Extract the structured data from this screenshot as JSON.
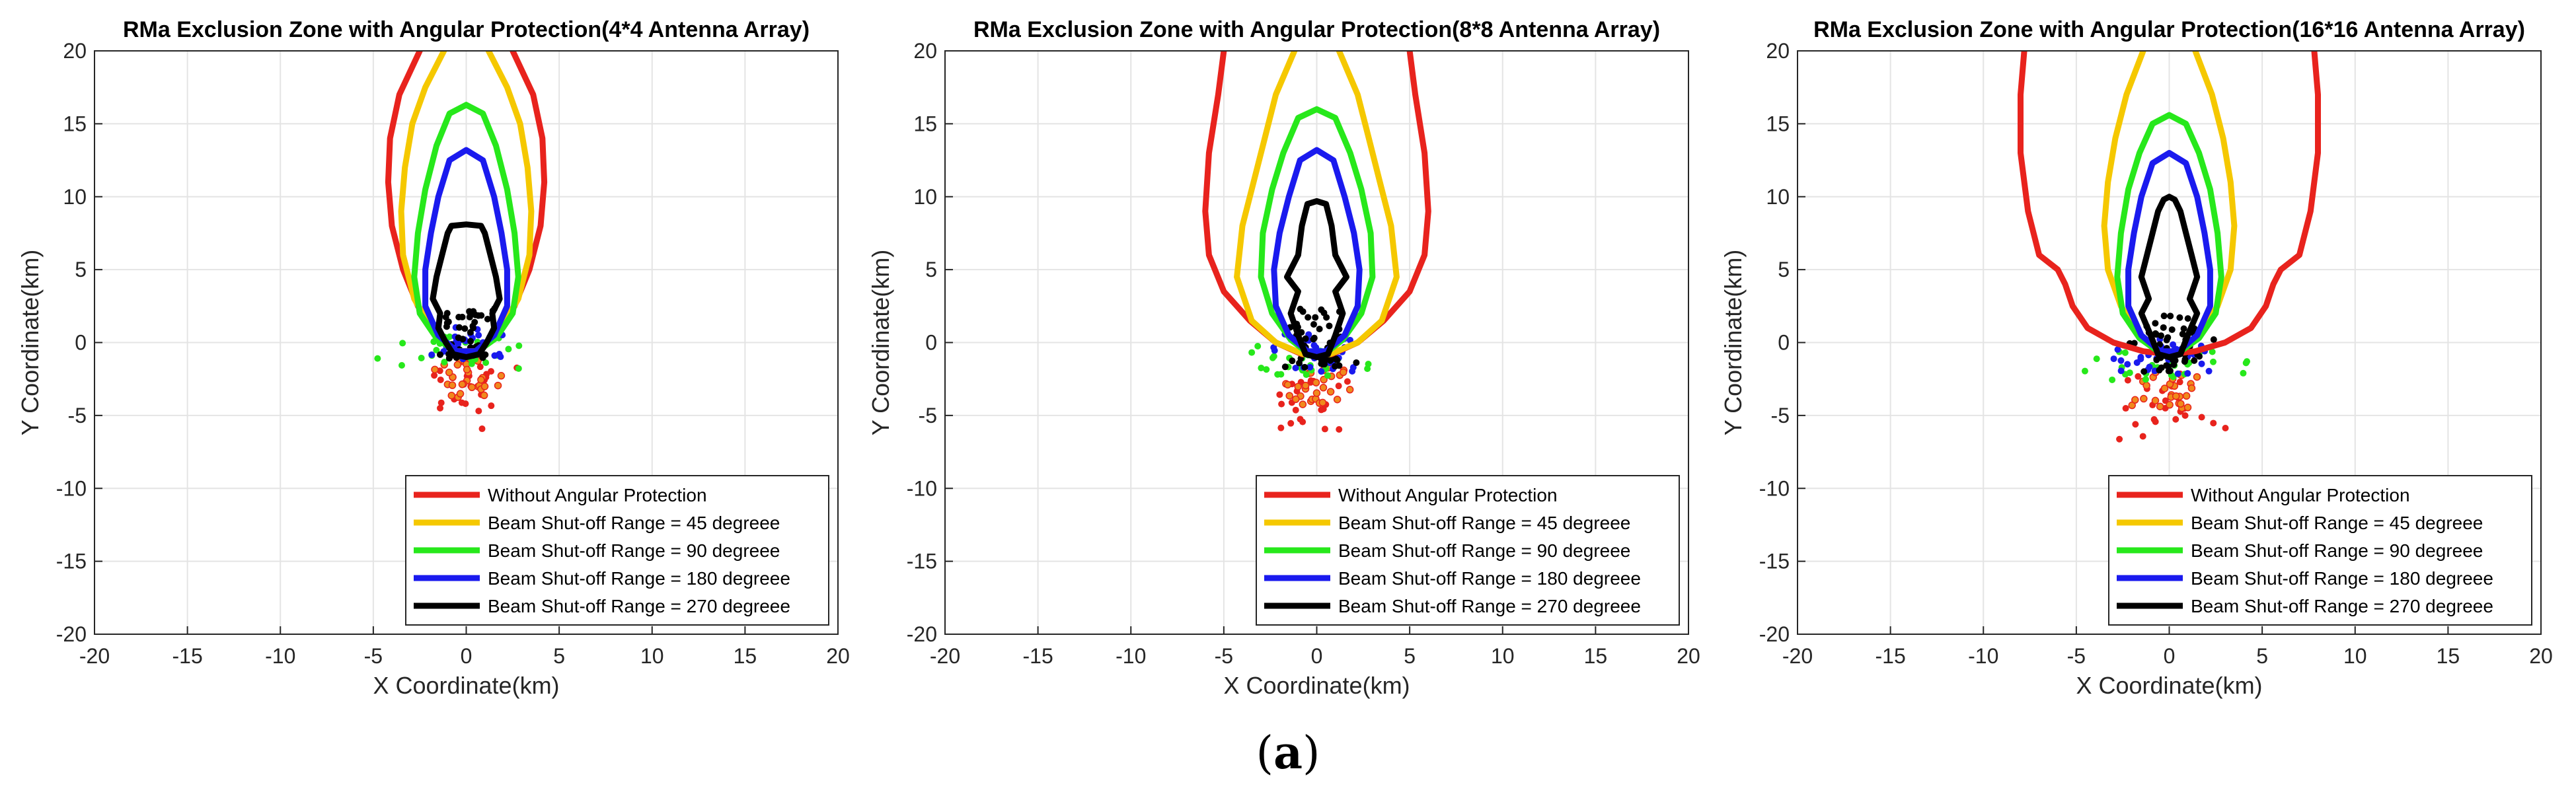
{
  "figure_label": {
    "open": "(",
    "letter": "a",
    "close": ")"
  },
  "colors": {
    "red": "#e8231d",
    "yellow": "#f5c800",
    "green": "#27e81b",
    "blue": "#1a1aee",
    "black": "#000000",
    "grid": "#e4e4e4",
    "orange_marker": "#f08a1c"
  },
  "chart_data": [
    {
      "type": "line",
      "title": "RMa Exclusion Zone with Angular Protection(4*4 Antenna Array)",
      "xlabel": "X Coordinate(km)",
      "ylabel": "Y Coordinate(km)",
      "xlim": [
        -20,
        20
      ],
      "ylim": [
        -20,
        20
      ],
      "xticks": [
        -20,
        -15,
        -10,
        -5,
        0,
        5,
        10,
        15,
        20
      ],
      "yticks": [
        -20,
        -15,
        -10,
        -5,
        0,
        5,
        10,
        15,
        20
      ],
      "grid": true,
      "legend_loc": "bottom-right",
      "series": [
        {
          "name": "Without Angular Protection",
          "color": "red",
          "x": [
            -2.5,
            -3.6,
            -4.1,
            -4.2,
            -4.0,
            -3.4,
            -2.6,
            -1.6,
            -0.6,
            0.6,
            1.6,
            2.6,
            3.4,
            4.0,
            4.2,
            4.1,
            3.6,
            2.5
          ],
          "y": [
            20,
            17,
            14,
            11,
            8,
            5,
            2.5,
            0.5,
            -0.6,
            -0.6,
            0.5,
            2.5,
            5,
            8,
            11,
            14,
            17,
            20
          ]
        },
        {
          "name": "Beam Shut-off Range = 45 degreee",
          "color": "yellow",
          "x": [
            -1.2,
            -2.2,
            -2.9,
            -3.3,
            -3.5,
            -3.4,
            -2.8,
            -1.8,
            -0.6,
            0.6,
            1.8,
            2.8,
            3.4,
            3.5,
            3.3,
            2.9,
            2.2,
            1.2
          ],
          "y": [
            20,
            17.5,
            15,
            12,
            9,
            6,
            3,
            0.8,
            -0.6,
            -0.6,
            0.8,
            3,
            6,
            9,
            12,
            15,
            17.5,
            20
          ]
        },
        {
          "name": "Beam Shut-off Range = 90 degreee",
          "color": "green",
          "x": [
            0,
            -0.9,
            -1.6,
            -2.2,
            -2.6,
            -2.8,
            -2.5,
            -1.6,
            -0.5,
            0.5,
            1.6,
            2.5,
            2.8,
            2.6,
            2.2,
            1.6,
            0.9,
            0
          ],
          "y": [
            16.3,
            15.7,
            13.5,
            10.5,
            7.5,
            4.5,
            2,
            0.3,
            -0.7,
            -0.7,
            0.3,
            2,
            4.5,
            7.5,
            10.5,
            13.5,
            15.7,
            16.3
          ]
        },
        {
          "name": "Beam Shut-off Range = 180 degreee",
          "color": "blue",
          "x": [
            0,
            -0.9,
            -1.5,
            -1.9,
            -2.2,
            -2.2,
            -1.5,
            -0.5,
            0.5,
            1.5,
            2.2,
            2.2,
            1.9,
            1.5,
            0.9,
            0
          ],
          "y": [
            13.2,
            12.5,
            10,
            7.5,
            5,
            2.5,
            0.5,
            -0.6,
            -0.6,
            0.5,
            2.5,
            5,
            7.5,
            10,
            12.5,
            13.2
          ]
        },
        {
          "name": "Beam Shut-off Range = 270 degreee",
          "color": "black",
          "x": [
            -0.8,
            -1,
            -1.3,
            -1.6,
            -1.8,
            -1.4,
            -1.5,
            -1.1,
            -0.7,
            0,
            0.7,
            1.1,
            1.5,
            1.4,
            1.8,
            1.6,
            1.3,
            1,
            0.8,
            0,
            -0.8
          ],
          "y": [
            8,
            7.5,
            6,
            4.5,
            3,
            2,
            1,
            0,
            -0.8,
            -1,
            -0.8,
            0,
            1,
            2,
            3,
            4.5,
            6,
            7.5,
            8,
            8.1,
            8
          ]
        }
      ],
      "scatter_spread": [
        6.5,
        3.0,
        2.2
      ],
      "scatter_center": [
        0,
        0
      ]
    },
    {
      "type": "line",
      "title": "RMa Exclusion Zone with Angular Protection(8*8 Antenna Array)",
      "xlabel": "X Coordinate(km)",
      "ylabel": "Y Coordinate(km)",
      "xlim": [
        -20,
        20
      ],
      "ylim": [
        -20,
        20
      ],
      "xticks": [
        -20,
        -15,
        -10,
        -5,
        0,
        5,
        10,
        15,
        20
      ],
      "yticks": [
        -20,
        -15,
        -10,
        -5,
        0,
        5,
        10,
        15,
        20
      ],
      "grid": true,
      "legend_loc": "bottom-right",
      "series": [
        {
          "name": "Without Angular Protection",
          "color": "red",
          "x": [
            -5,
            -5.3,
            -5.8,
            -6.0,
            -5.8,
            -5.0,
            -3.6,
            -2.2,
            -0.8,
            0.8,
            2.2,
            3.6,
            5.0,
            5.8,
            6.0,
            5.8,
            5.3,
            5
          ],
          "y": [
            20,
            17,
            13,
            9,
            6,
            3.5,
            1.5,
            0,
            -0.8,
            -0.8,
            0,
            1.5,
            3.5,
            6,
            9,
            13,
            17,
            20
          ]
        },
        {
          "name": "Beam Shut-off Range = 45 degreee",
          "color": "yellow",
          "x": [
            -1.2,
            -2.2,
            -2.8,
            -3.4,
            -4.0,
            -4.3,
            -3.5,
            -2.2,
            -0.7,
            0.7,
            2.2,
            3.5,
            4.3,
            4.0,
            3.4,
            2.8,
            2.2,
            1.2
          ],
          "y": [
            20,
            17,
            14,
            11,
            8,
            4.5,
            1.5,
            0,
            -0.8,
            -0.8,
            0,
            1.5,
            4.5,
            8,
            11,
            14,
            17,
            20
          ]
        },
        {
          "name": "Beam Shut-off Range = 90 degreee",
          "color": "green",
          "x": [
            0,
            -1.0,
            -1.8,
            -2.4,
            -2.9,
            -3.0,
            -2.4,
            -1.4,
            -0.5,
            0.5,
            1.4,
            2.4,
            3.0,
            2.9,
            2.4,
            1.8,
            1.0,
            0
          ],
          "y": [
            16,
            15.4,
            13,
            10.5,
            7.5,
            4.5,
            2,
            0.2,
            -0.7,
            -0.7,
            0.2,
            2,
            4.5,
            7.5,
            10.5,
            13,
            15.4,
            16
          ]
        },
        {
          "name": "Beam Shut-off Range = 180 degreee",
          "color": "blue",
          "x": [
            0,
            -0.9,
            -1.5,
            -2.0,
            -2.3,
            -2.2,
            -1.5,
            -0.5,
            0.5,
            1.5,
            2.2,
            2.3,
            2.0,
            1.5,
            0.9,
            0
          ],
          "y": [
            13.2,
            12.5,
            10,
            7.5,
            5,
            2.5,
            0.5,
            -0.6,
            -0.6,
            0.5,
            2.5,
            5,
            7.5,
            10,
            12.5,
            13.2
          ]
        },
        {
          "name": "Beam Shut-off Range = 270 degreee",
          "color": "black",
          "x": [
            -0.5,
            -0.6,
            -0.8,
            -1.0,
            -1.6,
            -1.0,
            -1.4,
            -1.0,
            -0.6,
            0,
            0.6,
            1.0,
            1.4,
            1.0,
            1.6,
            1.0,
            0.8,
            0.6,
            0.5,
            0,
            -0.5
          ],
          "y": [
            9.5,
            9,
            8,
            6,
            4.5,
            3.5,
            2,
            0.5,
            -0.8,
            -1,
            -0.8,
            0.5,
            2,
            3.5,
            4.5,
            6,
            8,
            9,
            9.5,
            9.7,
            9.5
          ]
        }
      ],
      "scatter_spread": [
        6.0,
        3.4,
        2.6
      ],
      "scatter_center": [
        0,
        -0.5
      ]
    },
    {
      "type": "line",
      "title": "RMa Exclusion Zone with Angular Protection(16*16 Antenna Array)",
      "xlabel": "X Coordinate(km)",
      "ylabel": "Y Coordinate(km)",
      "xlim": [
        -20,
        20
      ],
      "ylim": [
        -20,
        20
      ],
      "xticks": [
        -20,
        -15,
        -10,
        -5,
        0,
        5,
        10,
        15,
        20
      ],
      "yticks": [
        -20,
        -15,
        -10,
        -5,
        0,
        5,
        10,
        15,
        20
      ],
      "grid": true,
      "legend_loc": "bottom-right",
      "series": [
        {
          "name": "Without Angular Protection",
          "color": "red",
          "x": [
            -7.8,
            -8.0,
            -8.0,
            -7.6,
            -7,
            -6.0,
            -5.6,
            -5.2,
            -4.4,
            -3.0,
            -1.4,
            0,
            1.4,
            3.0,
            4.4,
            5.2,
            5.6,
            6.0,
            7,
            7.6,
            8.0,
            8.0,
            7.8
          ],
          "y": [
            20,
            17,
            13,
            9,
            6,
            5,
            4,
            2.5,
            1,
            0,
            -0.6,
            -0.8,
            -0.6,
            0,
            1,
            2.5,
            4,
            5,
            6,
            9,
            13,
            17,
            20
          ]
        },
        {
          "name": "Beam Shut-off Range = 45 degreee",
          "color": "yellow",
          "x": [
            -1.4,
            -2.3,
            -2.9,
            -3.3,
            -3.5,
            -3.3,
            -2.6,
            -1.6,
            -0.5,
            0.5,
            1.6,
            2.6,
            3.3,
            3.5,
            3.3,
            2.9,
            2.3,
            1.4
          ],
          "y": [
            20,
            17,
            14,
            11,
            8,
            5,
            2.5,
            0.5,
            -0.7,
            -0.7,
            0.5,
            2.5,
            5,
            8,
            11,
            14,
            17,
            20
          ]
        },
        {
          "name": "Beam Shut-off Range = 90 degreee",
          "color": "green",
          "x": [
            0,
            -0.9,
            -1.6,
            -2.2,
            -2.6,
            -2.8,
            -2.5,
            -1.6,
            -0.5,
            0.5,
            1.6,
            2.5,
            2.8,
            2.6,
            2.2,
            1.6,
            0.9,
            0
          ],
          "y": [
            15.6,
            15,
            13,
            10.5,
            7.5,
            4.5,
            2,
            0.3,
            -0.7,
            -0.7,
            0.3,
            2,
            4.5,
            7.5,
            10.5,
            13,
            15,
            15.6
          ]
        },
        {
          "name": "Beam Shut-off Range = 180 degreee",
          "color": "blue",
          "x": [
            0,
            -0.9,
            -1.5,
            -1.9,
            -2.2,
            -2.2,
            -1.5,
            -0.5,
            0.5,
            1.5,
            2.2,
            2.2,
            1.9,
            1.5,
            0.9,
            0
          ],
          "y": [
            13,
            12.3,
            10,
            7.5,
            5,
            2.5,
            0.5,
            -0.6,
            -0.6,
            0.5,
            2.5,
            5,
            7.5,
            10,
            12.3,
            13
          ]
        },
        {
          "name": "Beam Shut-off Range = 270 degreee",
          "color": "black",
          "x": [
            -0.3,
            -0.6,
            -0.9,
            -1.2,
            -1.5,
            -1.1,
            -1.5,
            -1.0,
            -0.6,
            0,
            0.6,
            1.0,
            1.5,
            1.1,
            1.5,
            1.2,
            0.9,
            0.6,
            0.3,
            0,
            -0.3
          ],
          "y": [
            9.8,
            9,
            7.5,
            6,
            4.5,
            3,
            2,
            0.5,
            -0.8,
            -1,
            -0.8,
            0.5,
            2,
            3,
            4.5,
            6,
            7.5,
            9,
            9.8,
            10,
            9.8
          ]
        }
      ],
      "scatter_spread": [
        6.0,
        3.6,
        2.8
      ],
      "scatter_center": [
        0,
        -0.8
      ]
    }
  ]
}
